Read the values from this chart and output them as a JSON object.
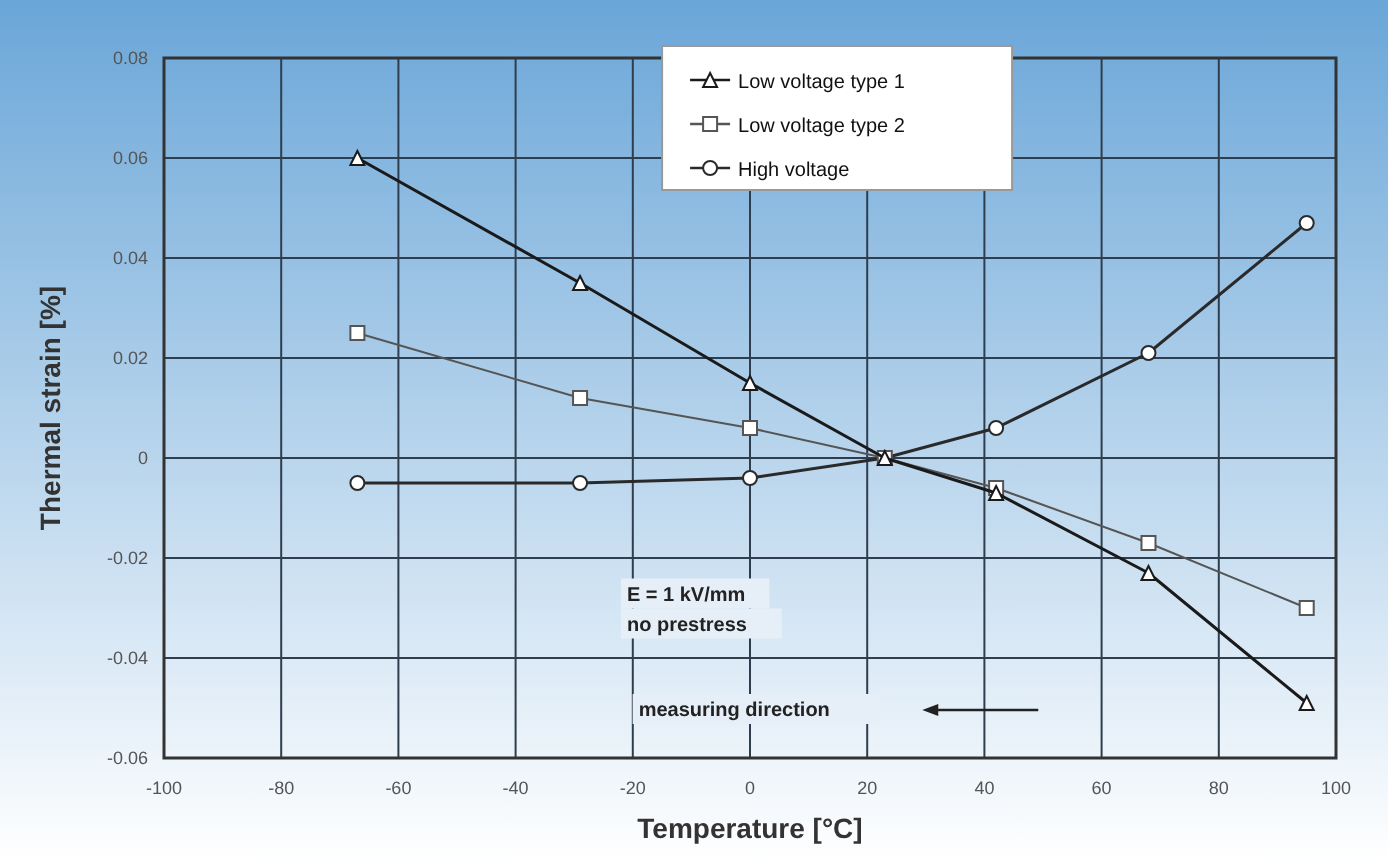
{
  "chart_data": {
    "type": "line",
    "xlabel": "Temperature [°C]",
    "ylabel": "Thermal strain [%]",
    "x": [
      -67,
      -29,
      0,
      23,
      42,
      68,
      95
    ],
    "series": [
      {
        "name": "Low voltage type 1",
        "color": "#1a1a1a",
        "marker": "triangle",
        "values": [
          0.06,
          0.035,
          0.015,
          0,
          -0.007,
          -0.023,
          -0.049
        ]
      },
      {
        "name": "Low voltage type 2",
        "color": "#555555",
        "marker": "square",
        "values": [
          0.025,
          0.012,
          0.006,
          0,
          -0.006,
          -0.017,
          -0.03
        ]
      },
      {
        "name": "High voltage",
        "color": "#2a2a2a",
        "marker": "circle",
        "values": [
          -0.005,
          -0.005,
          -0.004,
          0,
          0.006,
          0.021,
          0.047
        ]
      }
    ],
    "xlim": [
      -100,
      100
    ],
    "xticks": [
      -100,
      -80,
      -60,
      -40,
      -20,
      0,
      20,
      40,
      60,
      80,
      100
    ],
    "ylim": [
      -0.06,
      0.08
    ],
    "yticks": [
      -0.06,
      -0.04,
      -0.02,
      0,
      0.02,
      0.04,
      0.06,
      0.08
    ],
    "grid": true,
    "legend": "top",
    "annotations": [
      "E = 1 kV/mm",
      "no prestress",
      "measuring direction"
    ]
  }
}
